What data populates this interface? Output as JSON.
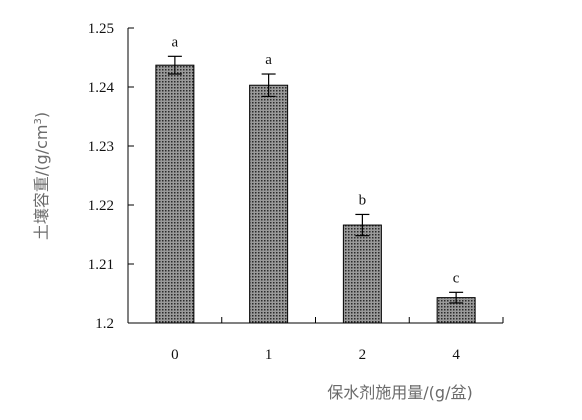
{
  "chart_data": {
    "type": "bar",
    "title": "",
    "xlabel": "保水剂施用量/(g/盆)",
    "ylabel": "土壤容重/(g/cm",
    "ylabel_superscript": "3",
    "ylabel_suffix": ")",
    "categories": [
      "0",
      "1",
      "2",
      "4"
    ],
    "values": [
      1.2437,
      1.2403,
      1.2166,
      1.2043
    ],
    "errors": [
      0.0015,
      0.0019,
      0.0018,
      0.0009
    ],
    "significance": [
      "a",
      "a",
      "b",
      "c"
    ],
    "ylim": [
      1.2,
      1.25
    ],
    "yticks": [
      "1.2",
      "1.21",
      "1.22",
      "1.23",
      "1.24",
      "1.25"
    ],
    "grid": false,
    "legend": "none",
    "bar_fill": "#8c8c8c",
    "bar_stroke": "#000000"
  }
}
